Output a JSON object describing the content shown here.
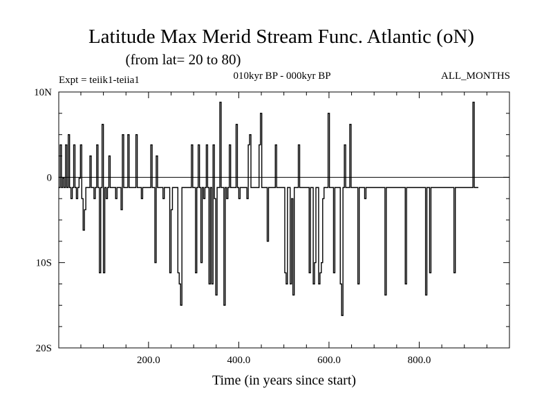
{
  "header": {
    "title": "Latitude Max Merid Stream Func. Atlantic (oN)",
    "subtitle": "(from lat= 20 to 80)",
    "expt": "Expt = teiik1-teiia1",
    "period": "010kyr BP - 000kyr BP",
    "months": "ALL_MONTHS"
  },
  "chart_data": {
    "type": "line",
    "xlabel": "Time (in years since start)",
    "ylabel": "",
    "xlim": [
      1,
      1000
    ],
    "ylim": [
      -20,
      10
    ],
    "x_ticks": [
      200,
      400,
      600,
      800
    ],
    "x_tick_labels": [
      "200.0",
      "400.0",
      "600.0",
      "800.0"
    ],
    "y_ticks": [
      10,
      0,
      -10,
      -20
    ],
    "y_tick_labels": [
      "10N",
      "0",
      "10S",
      "20S"
    ],
    "series": [
      {
        "color": "#000000",
        "x_start": 1,
        "x_step": 3,
        "values": [
          -1.2,
          3.8,
          -1.2,
          -0.1,
          -1.2,
          3.8,
          -1.2,
          5,
          -1.2,
          -2.5,
          -1.2,
          3.8,
          -1.2,
          -2.5,
          -1.2,
          -0.1,
          3.8,
          -2.5,
          -6.2,
          -3.8,
          -1.2,
          -1.2,
          -1.2,
          2.5,
          -1.2,
          -1.2,
          -2.5,
          -1.2,
          3.8,
          -1.2,
          -11.2,
          -1.2,
          6.2,
          -11.2,
          -1.2,
          -2.5,
          -1.2,
          2.5,
          -1.2,
          -1.2,
          -1.2,
          -1.2,
          -2.5,
          -1.2,
          -1.2,
          -1.2,
          -3.8,
          5,
          -1.2,
          -1.2,
          -1.2,
          5,
          -1.2,
          -1.2,
          -1.2,
          -1.2,
          -1.2,
          5,
          -1.2,
          -1.2,
          -1.2,
          -2.5,
          -1.2,
          -1.2,
          -1.2,
          -1.2,
          -1.2,
          -1.2,
          3.8,
          -1.2,
          -1.2,
          -10,
          2.5,
          -1.2,
          -1.2,
          -1.2,
          -1.2,
          -2.5,
          -1.2,
          -1.2,
          -1.2,
          -1.2,
          -11.2,
          -3.8,
          -1.2,
          -1.2,
          -1.2,
          -1.2,
          -11.2,
          -12.5,
          -15,
          -1.2,
          -1.2,
          -1.2,
          -1.2,
          -1.2,
          -1.2,
          -1.2,
          3.8,
          -1.2,
          -1.2,
          -11.2,
          -1.2,
          3.8,
          -1.2,
          -10,
          -1.2,
          -2.5,
          -1.2,
          3.8,
          -1.2,
          -12.5,
          -1.2,
          -12.5,
          3.8,
          -2.5,
          -13.8,
          -1.2,
          -1.2,
          8.8,
          -1.2,
          -1.2,
          -15,
          -1.2,
          -2.5,
          -1.2,
          3.8,
          -1.2,
          -1.2,
          -1.2,
          -1.2,
          6.2,
          -1.2,
          -2.5,
          -1.2,
          -1.2,
          -1.2,
          -1.2,
          -1.2,
          -2.5,
          3.8,
          5,
          -1.2,
          -1.2,
          -1.2,
          -1.2,
          -1.2,
          -1.2,
          3.8,
          7.5,
          -1.2,
          -1.2,
          -1.2,
          -1.2,
          -7.5,
          -1.2,
          -1.2,
          -1.2,
          -1.2,
          -1.2,
          3.8,
          -1.2,
          -1.2,
          -1.2,
          -1.2,
          -1.2,
          -1.2,
          -11.2,
          -12.5,
          -1.2,
          -1.2,
          -12.5,
          -2.5,
          -13.8,
          -1.2,
          -1.2,
          -1.2,
          3.8,
          -1.2,
          -1.2,
          -1.2,
          -1.2,
          -1.2,
          -1.2,
          -1.2,
          -11.2,
          -1.2,
          -1.2,
          -12.5,
          -10,
          -1.2,
          -1.2,
          -12.5,
          -11.2,
          -10,
          -2.5,
          -1.2,
          -1.2,
          -1.2,
          7.5,
          -1.2,
          -1.2,
          -1.2,
          -11.2,
          -1.2,
          -1.2,
          -1.2,
          -1.2,
          -12.5,
          -16.2,
          -1.2,
          3.8,
          -1.2,
          -1.2,
          -1.2,
          6.2,
          -1.2,
          -1.2,
          -1.2,
          -1.2,
          -1.2,
          -12.5,
          -1.2,
          -1.2,
          -1.2,
          -1.2,
          -2.5,
          -1.2,
          -1.2,
          -1.2,
          -1.2,
          -1.2,
          -1.2,
          -1.2,
          -1.2,
          -1.2,
          -1.2,
          -1.2,
          -1.2,
          -1.2,
          -1.2,
          -13.8,
          -1.2,
          -1.2,
          -1.2,
          -1.2,
          -1.2,
          -1.2,
          -1.2,
          -1.2,
          -1.2,
          -1.2,
          -1.2,
          -1.2,
          -1.2,
          -1.2,
          -12.5,
          -1.2,
          -1.2,
          -1.2,
          -1.2,
          -1.2,
          -1.2,
          -1.2,
          -1.2,
          -1.2,
          -1.2,
          -1.2,
          -1.2,
          -1.2,
          -1.2,
          -13.8,
          -1.2,
          -1.2,
          -11.2,
          -1.2,
          -1.2,
          -1.2,
          -1.2,
          -1.2,
          -1.2,
          -1.2,
          -1.2,
          -1.2,
          -1.2,
          -1.2,
          -1.2,
          -1.2,
          -1.2,
          -1.2,
          -1.2,
          -1.2,
          -11.2,
          -1.2,
          -1.2,
          -1.2,
          -1.2,
          -1.2,
          -1.2,
          -1.2,
          -1.2,
          -1.2,
          -1.2,
          -1.2,
          -1.2,
          -1.2,
          8.8,
          -1.2,
          -1.2,
          -1.2
        ]
      }
    ],
    "grid": false
  }
}
